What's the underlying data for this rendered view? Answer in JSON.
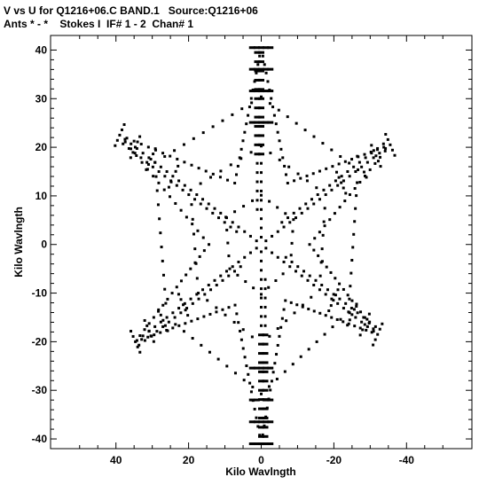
{
  "header": {
    "line1": "V vs U for Q1216+06.C BAND.1   Source:Q1216+06",
    "line2": "Ants * - *    Stokes I  IF# 1 - 2  Chan# 1"
  },
  "chart_data": {
    "type": "scatter",
    "title": "V vs U for Q1216+06.C BAND.1   Source:Q1216+06",
    "subtitle": "Ants * - *    Stokes I  IF# 1 - 2  Chan# 1",
    "xlabel": "Kilo Wavlngth",
    "ylabel": "Kilo Wavlngth",
    "xlim": [
      58,
      -58
    ],
    "ylim": [
      -42,
      43
    ],
    "x_reversed": true,
    "grid": false,
    "xticks": [
      40,
      20,
      0,
      -20,
      -40
    ],
    "xtick_labels": [
      "40",
      "20",
      "0",
      "-20",
      "-40"
    ],
    "yticks": [
      40,
      30,
      20,
      10,
      0,
      -10,
      -20,
      -30,
      -40
    ],
    "ytick_labels": [
      "40",
      "30",
      "20",
      "10",
      "0",
      "-10",
      "-20",
      "-30",
      "-40"
    ],
    "pattern": {
      "arm_angles_deg": [
        90,
        30,
        -30,
        -90,
        -150,
        150
      ],
      "arm_max_radius": [
        40.5,
        41,
        37,
        41,
        40,
        45
      ],
      "arm_station_fractions": [
        0.62,
        0.78,
        0.89,
        1.0
      ],
      "arm_tangential_spread": 2.5,
      "node_spacing": 1.9
    }
  }
}
